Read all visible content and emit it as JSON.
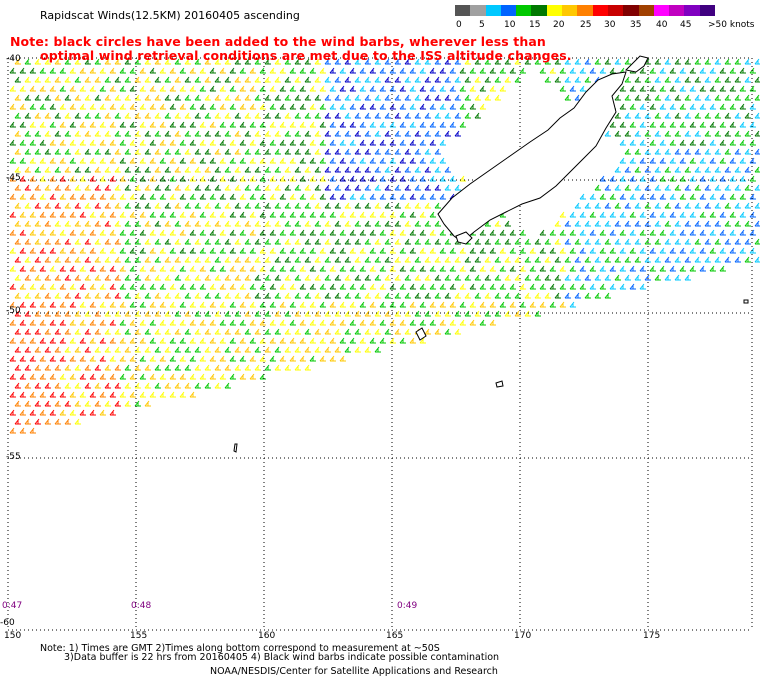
{
  "title": "Rapidscat Winds(12.5KM) 20160405 ascending",
  "note": {
    "line1": "Note: black circles have been added to the wind barbs, wherever less than",
    "line2": "optimal wind retrieval conditions are met due to the ISS altitude changes."
  },
  "legend": {
    "unit_label": ">50 knots",
    "ticks": [
      "0",
      "5",
      "10",
      "15",
      "20",
      "25",
      "30",
      "35",
      "40",
      "45"
    ],
    "colors": [
      "#555555",
      "#a0a0a0",
      "#00c8ff",
      "#0064ff",
      "#00c800",
      "#007800",
      "#ffff00",
      "#ffc800",
      "#ff8000",
      "#ff0000",
      "#c80000",
      "#800000",
      "#a04000",
      "#ff00ff",
      "#c000c0",
      "#8000c0",
      "#400080"
    ]
  },
  "axes": {
    "lon_labels": [
      "150",
      "155",
      "160",
      "165",
      "170",
      "175"
    ],
    "lat_labels": [
      "-40",
      "-45",
      "-50",
      "-55",
      "-60"
    ]
  },
  "times": [
    "0:47",
    "0:48",
    "0:49"
  ],
  "footer": {
    "line1": "Note: 1) Times are GMT 2)Times along bottom correspond to measurement at ~50S",
    "line2": "3)Data buffer is 22 hrs from 20160405 4) Black wind barbs indicate possible contamination",
    "credit": "NOAA/NESDIS/Center for Satellite Applications and Research"
  },
  "colors": {
    "note_text": "#ff0000",
    "time_text": "#800080",
    "grid": "#000000"
  }
}
